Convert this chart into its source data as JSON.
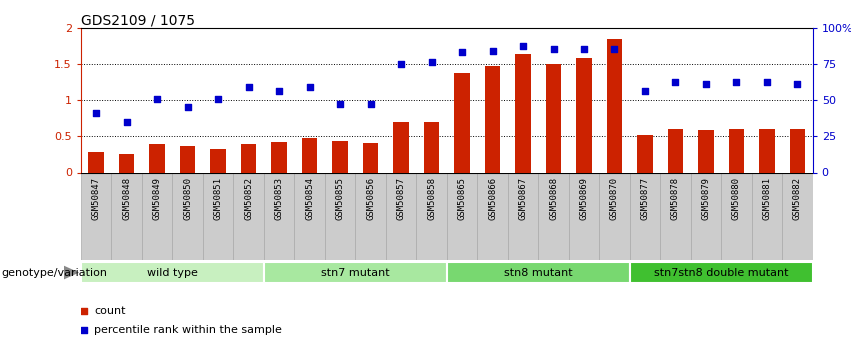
{
  "title": "GDS2109 / 1075",
  "samples": [
    "GSM50847",
    "GSM50848",
    "GSM50849",
    "GSM50850",
    "GSM50851",
    "GSM50852",
    "GSM50853",
    "GSM50854",
    "GSM50855",
    "GSM50856",
    "GSM50857",
    "GSM50858",
    "GSM50865",
    "GSM50866",
    "GSM50867",
    "GSM50868",
    "GSM50869",
    "GSM50870",
    "GSM50877",
    "GSM50878",
    "GSM50879",
    "GSM50880",
    "GSM50881",
    "GSM50882"
  ],
  "counts": [
    0.28,
    0.25,
    0.4,
    0.37,
    0.33,
    0.4,
    0.42,
    0.47,
    0.43,
    0.41,
    0.7,
    0.7,
    1.37,
    1.47,
    1.64,
    1.5,
    1.58,
    1.84,
    0.52,
    0.6,
    0.59,
    0.6,
    0.6,
    0.6
  ],
  "percentile": [
    0.82,
    0.7,
    1.02,
    0.9,
    1.02,
    1.18,
    1.12,
    1.18,
    0.95,
    0.95,
    1.5,
    1.52,
    1.67,
    1.68,
    1.75,
    1.7,
    1.7,
    1.7,
    1.12,
    1.25,
    1.22,
    1.25,
    1.25,
    1.22
  ],
  "groups": [
    {
      "label": "wild type",
      "start": 0,
      "end": 6,
      "color": "#c8f0c0"
    },
    {
      "label": "stn7 mutant",
      "start": 6,
      "end": 12,
      "color": "#a0e898"
    },
    {
      "label": "stn8 mutant",
      "start": 12,
      "end": 18,
      "color": "#70d868"
    },
    {
      "label": "stn7stn8 double mutant",
      "start": 18,
      "end": 24,
      "color": "#40c838"
    }
  ],
  "bar_color": "#cc2200",
  "dot_color": "#0000cc",
  "left_ylim": [
    0,
    2.0
  ],
  "left_yticks": [
    0,
    0.5,
    1.0,
    1.5,
    2.0
  ],
  "left_yticklabels": [
    "0",
    "0.5",
    "1",
    "1.5",
    "2"
  ],
  "right_yticklabels": [
    "0",
    "25",
    "50",
    "75",
    "100%"
  ],
  "dotted_lines": [
    0.5,
    1.0,
    1.5
  ],
  "bar_width": 0.5,
  "legend_count_label": "count",
  "legend_pct_label": "percentile rank within the sample",
  "group_label": "genotype/variation",
  "xlabel_bg_color": "#d0d0d0",
  "xlabel_border_color": "#999999"
}
